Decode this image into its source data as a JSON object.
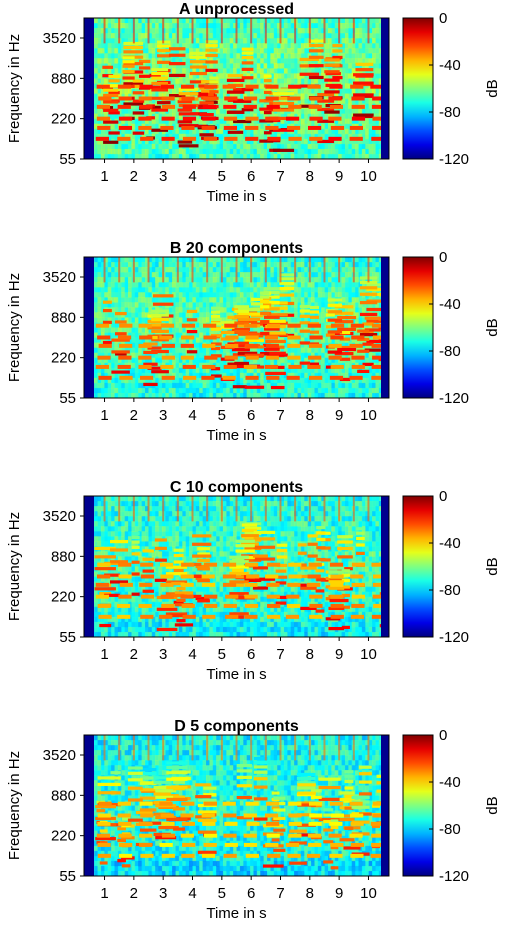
{
  "chart_data": [
    {
      "type": "heatmap",
      "title": "A  unprocessed",
      "xlabel": "Time in s",
      "ylabel": "Frequency in Hz",
      "x_ticks": [
        "1",
        "2",
        "3",
        "4",
        "5",
        "6",
        "7",
        "8",
        "9",
        "10"
      ],
      "y_ticks": [
        "55",
        "220",
        "880",
        "3520"
      ],
      "y_scale": "log",
      "x_range": [
        0.3,
        10.7
      ],
      "y_range_hz": [
        55,
        7000
      ],
      "colorbar": {
        "label": "dB",
        "ticks": [
          "0",
          "-40",
          "-80",
          "-120"
        ],
        "range": [
          -120,
          0
        ],
        "colormap": "jet"
      },
      "intensity": 1.0
    },
    {
      "type": "heatmap",
      "title": "B  20 components",
      "xlabel": "Time in s",
      "ylabel": "Frequency in Hz",
      "x_ticks": [
        "1",
        "2",
        "3",
        "4",
        "5",
        "6",
        "7",
        "8",
        "9",
        "10"
      ],
      "y_ticks": [
        "55",
        "220",
        "880",
        "3520"
      ],
      "y_scale": "log",
      "x_range": [
        0.3,
        10.7
      ],
      "y_range_hz": [
        55,
        7000
      ],
      "colorbar": {
        "label": "dB",
        "ticks": [
          "0",
          "-40",
          "-80",
          "-120"
        ],
        "range": [
          -120,
          0
        ],
        "colormap": "jet"
      },
      "intensity": 0.82
    },
    {
      "type": "heatmap",
      "title": "C  10 components",
      "xlabel": "Time in s",
      "ylabel": "Frequency in Hz",
      "x_ticks": [
        "1",
        "2",
        "3",
        "4",
        "5",
        "6",
        "7",
        "8",
        "9",
        "10"
      ],
      "y_ticks": [
        "55",
        "220",
        "880",
        "3520"
      ],
      "y_scale": "log",
      "x_range": [
        0.3,
        10.7
      ],
      "y_range_hz": [
        55,
        7000
      ],
      "colorbar": {
        "label": "dB",
        "ticks": [
          "0",
          "-40",
          "-80",
          "-120"
        ],
        "range": [
          -120,
          0
        ],
        "colormap": "jet"
      },
      "intensity": 0.7
    },
    {
      "type": "heatmap",
      "title": "D  5 components",
      "xlabel": "Time in s",
      "ylabel": "Frequency in Hz",
      "x_ticks": [
        "1",
        "2",
        "3",
        "4",
        "5",
        "6",
        "7",
        "8",
        "9",
        "10"
      ],
      "y_ticks": [
        "55",
        "220",
        "880",
        "3520"
      ],
      "y_scale": "log",
      "x_range": [
        0.3,
        10.7
      ],
      "y_range_hz": [
        55,
        7000
      ],
      "colorbar": {
        "label": "dB",
        "ticks": [
          "0",
          "-40",
          "-80",
          "-120"
        ],
        "range": [
          -120,
          0
        ],
        "colormap": "jet"
      },
      "intensity": 0.58
    }
  ]
}
